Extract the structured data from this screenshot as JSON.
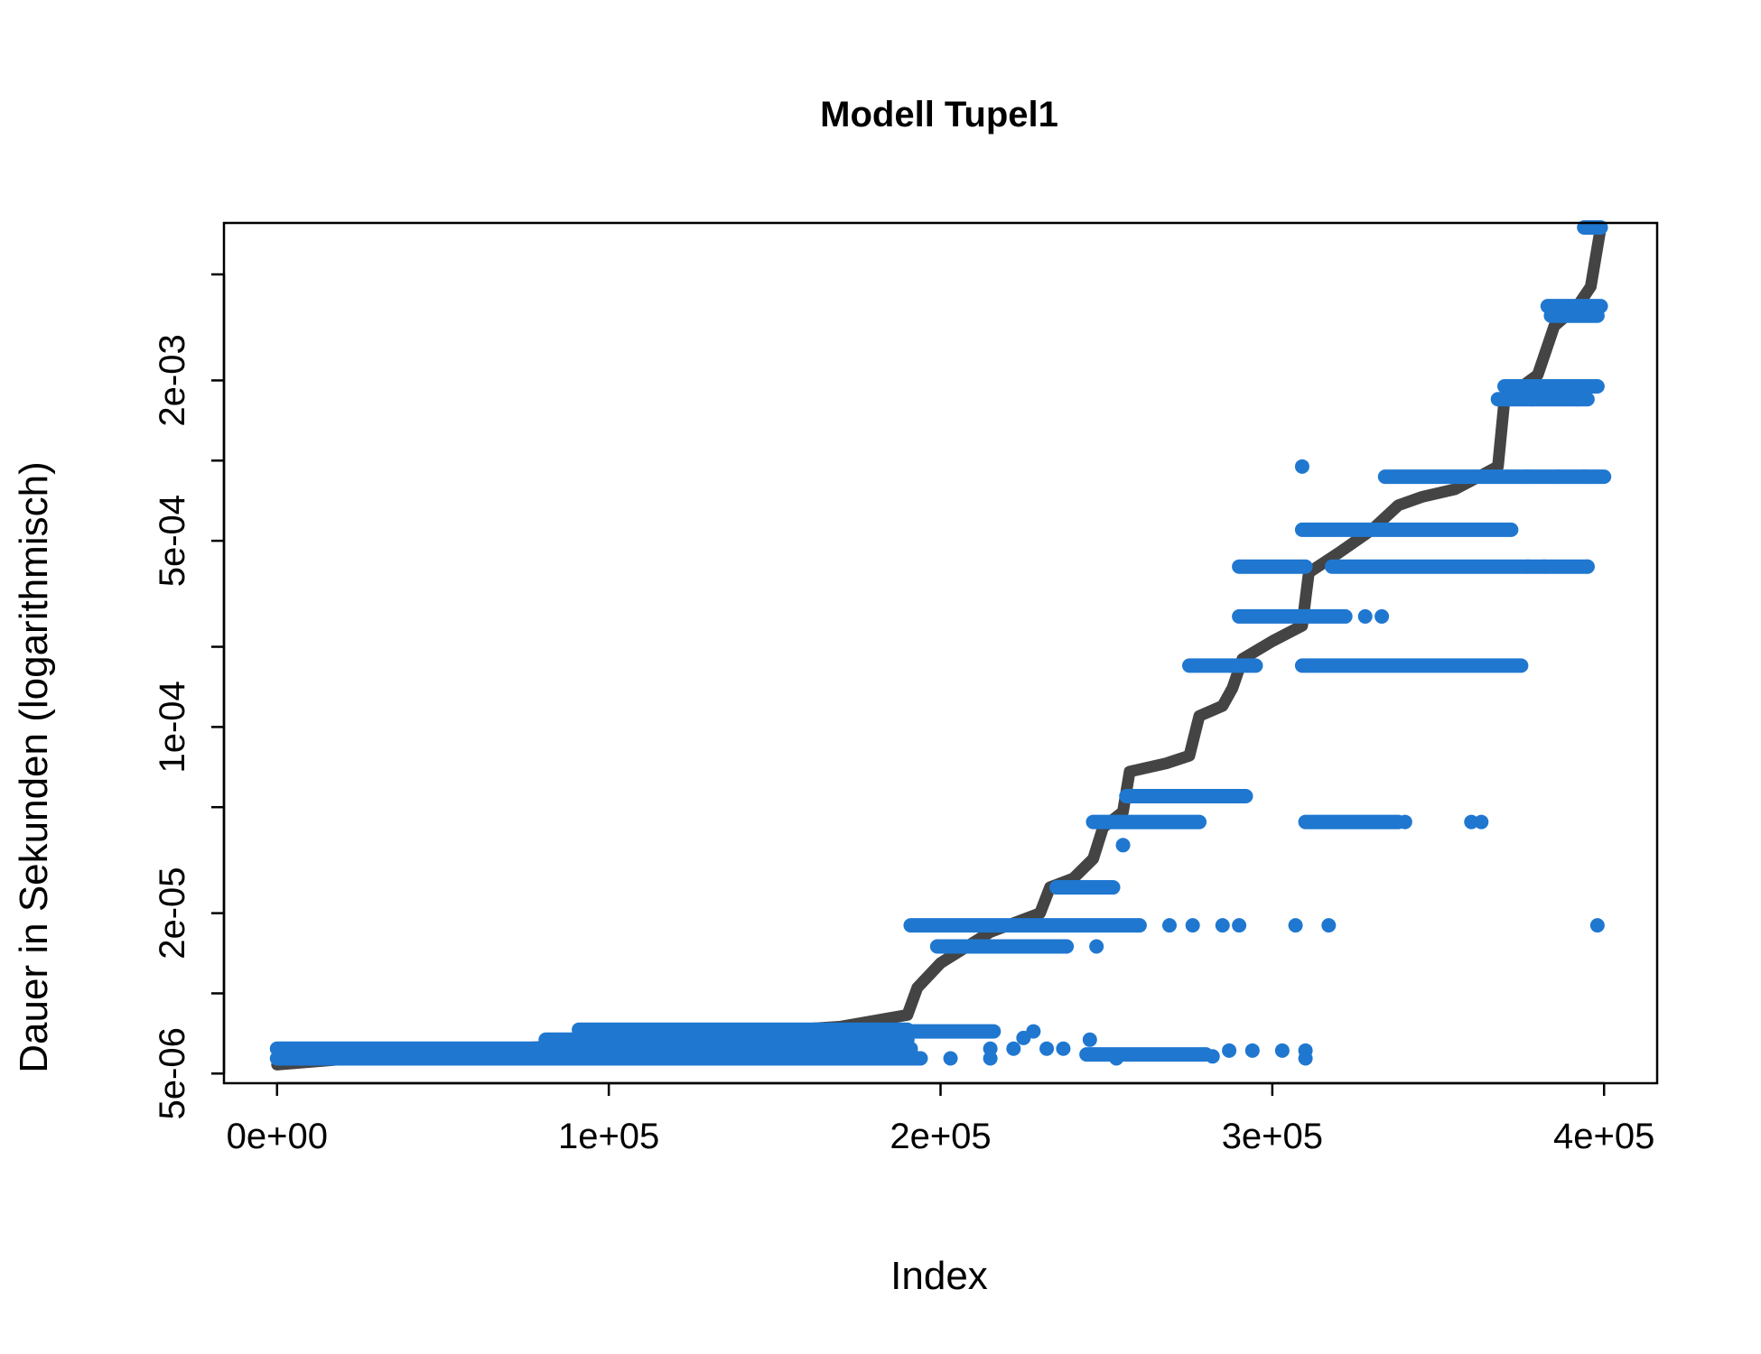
{
  "chart_data": {
    "type": "scatter",
    "title": "Modell Tupel1",
    "xlabel": "Index",
    "ylabel": "Dauer in Sekunden (logarithmisch)",
    "xlim": [
      -16000,
      416000
    ],
    "ylim": [
      4.6e-06,
      0.0078
    ],
    "y_scale": "log",
    "x_ticks": [
      {
        "value": 0,
        "label": "0e+00"
      },
      {
        "value": 100000,
        "label": "1e+05"
      },
      {
        "value": 200000,
        "label": "2e+05"
      },
      {
        "value": 300000,
        "label": "3e+05"
      },
      {
        "value": 400000,
        "label": "4e+05"
      }
    ],
    "y_ticks": [
      {
        "value": 5e-06,
        "label": "5e-06"
      },
      {
        "value": 1e-05,
        "label": ""
      },
      {
        "value": 2e-05,
        "label": "2e-05"
      },
      {
        "value": 5e-05,
        "label": ""
      },
      {
        "value": 0.0001,
        "label": "1e-04"
      },
      {
        "value": 0.0002,
        "label": ""
      },
      {
        "value": 0.0005,
        "label": "5e-04"
      },
      {
        "value": 0.001,
        "label": ""
      },
      {
        "value": 0.002,
        "label": "2e-03"
      },
      {
        "value": 0.005,
        "label": ""
      }
    ],
    "colors": {
      "line": "#444444",
      "points": "#1f77d0"
    },
    "series": [
      {
        "kind": "line",
        "x": [
          0,
          30000,
          80000,
          120000,
          170000,
          190000,
          193000,
          200000,
          215000,
          230000,
          233000,
          240000,
          246000,
          249000,
          255000,
          257000,
          268000,
          275000,
          278000,
          285000,
          288000,
          291000,
          300000,
          309000,
          311000,
          320000,
          330000,
          338000,
          345000,
          355000,
          363000,
          368000,
          370000,
          380000,
          385000,
          392000,
          396000,
          399000
        ],
        "y": [
          5.4e-06,
          5.8e-06,
          6.3e-06,
          6.8e-06,
          7.5e-06,
          8.3e-06,
          1.05e-05,
          1.3e-05,
          1.7e-05,
          2e-05,
          2.5e-05,
          2.7e-05,
          3.2e-05,
          4.2e-05,
          4.8e-05,
          6.8e-05,
          7.3e-05,
          7.8e-05,
          0.00011,
          0.00012,
          0.00014,
          0.00018,
          0.00021,
          0.00024,
          0.00038,
          0.00045,
          0.00055,
          0.00068,
          0.00073,
          0.00078,
          0.00088,
          0.00095,
          0.0017,
          0.0021,
          0.0032,
          0.0038,
          0.0045,
          0.0075
        ]
      },
      {
        "kind": "points",
        "clusters": [
          {
            "y": 6.2e-06,
            "x": [
              0,
              191000
            ]
          },
          {
            "y": 5.7e-06,
            "x": [
              0,
              194000
            ]
          },
          {
            "y": 6.7e-06,
            "x": [
              81000,
              190000
            ]
          },
          {
            "y": 7.3e-06,
            "x": [
              91000,
              190000
            ]
          },
          {
            "y": 7.2e-06,
            "x": [
              190000,
              216000
            ]
          },
          {
            "y": 5.9e-06,
            "x": [
              244000,
              280000
            ]
          },
          {
            "y": 1.8e-05,
            "x": [
              191000,
              260000
            ]
          },
          {
            "y": 1.5e-05,
            "x": [
              199000,
              238000
            ]
          },
          {
            "y": 2.5e-05,
            "x": [
              235000,
              252000
            ]
          },
          {
            "y": 4.4e-05,
            "x": [
              246000,
              278000
            ]
          },
          {
            "y": 5.5e-05,
            "x": [
              256000,
              292000
            ]
          },
          {
            "y": 4.4e-05,
            "x": [
              310000,
              338000
            ]
          },
          {
            "y": 0.00017,
            "x": [
              275000,
              295000
            ]
          },
          {
            "y": 0.00017,
            "x": [
              309000,
              375000
            ]
          },
          {
            "y": 0.00026,
            "x": [
              290000,
              322000
            ]
          },
          {
            "y": 0.0004,
            "x": [
              290000,
              310000
            ]
          },
          {
            "y": 0.0004,
            "x": [
              318000,
              395000
            ]
          },
          {
            "y": 0.00055,
            "x": [
              309000,
              372000
            ]
          },
          {
            "y": 0.00087,
            "x": [
              334000,
              400000
            ]
          },
          {
            "y": 0.0017,
            "x": [
              368000,
              395000
            ]
          },
          {
            "y": 0.0019,
            "x": [
              370000,
              398000
            ]
          },
          {
            "y": 0.0035,
            "x": [
              384000,
              398000
            ]
          },
          {
            "y": 0.0038,
            "x": [
              383000,
              399000
            ]
          },
          {
            "y": 0.0075,
            "x": [
              394000,
              399000
            ]
          }
        ],
        "singles": [
          {
            "x": 203000,
            "y": 5.7e-06
          },
          {
            "x": 215000,
            "y": 5.7e-06
          },
          {
            "x": 215000,
            "y": 6.2e-06
          },
          {
            "x": 222000,
            "y": 6.2e-06
          },
          {
            "x": 225000,
            "y": 6.8e-06
          },
          {
            "x": 228000,
            "y": 7.2e-06
          },
          {
            "x": 232000,
            "y": 6.2e-06
          },
          {
            "x": 237000,
            "y": 6.2e-06
          },
          {
            "x": 245000,
            "y": 6.7e-06
          },
          {
            "x": 253000,
            "y": 5.7e-06
          },
          {
            "x": 282000,
            "y": 5.8e-06
          },
          {
            "x": 287000,
            "y": 6.1e-06
          },
          {
            "x": 294000,
            "y": 6.1e-06
          },
          {
            "x": 303000,
            "y": 6.1e-06
          },
          {
            "x": 310000,
            "y": 5.7e-06
          },
          {
            "x": 310000,
            "y": 6.1e-06
          },
          {
            "x": 247000,
            "y": 1.5e-05
          },
          {
            "x": 255000,
            "y": 3.6e-05
          },
          {
            "x": 269000,
            "y": 1.8e-05
          },
          {
            "x": 276000,
            "y": 1.8e-05
          },
          {
            "x": 285000,
            "y": 1.8e-05
          },
          {
            "x": 290000,
            "y": 1.8e-05
          },
          {
            "x": 307000,
            "y": 1.8e-05
          },
          {
            "x": 317000,
            "y": 1.8e-05
          },
          {
            "x": 398000,
            "y": 1.8e-05
          },
          {
            "x": 340000,
            "y": 4.4e-05
          },
          {
            "x": 360000,
            "y": 4.4e-05
          },
          {
            "x": 363000,
            "y": 4.4e-05
          },
          {
            "x": 328000,
            "y": 0.00026
          },
          {
            "x": 333000,
            "y": 0.00026
          },
          {
            "x": 377000,
            "y": 0.0004
          },
          {
            "x": 382000,
            "y": 0.0004
          },
          {
            "x": 395000,
            "y": 0.0004
          },
          {
            "x": 309000,
            "y": 0.00095
          },
          {
            "x": 377000,
            "y": 0.00087
          },
          {
            "x": 386000,
            "y": 0.00087
          },
          {
            "x": 394000,
            "y": 0.00087
          },
          {
            "x": 378000,
            "y": 0.0017
          },
          {
            "x": 392000,
            "y": 0.0017
          }
        ]
      }
    ]
  }
}
